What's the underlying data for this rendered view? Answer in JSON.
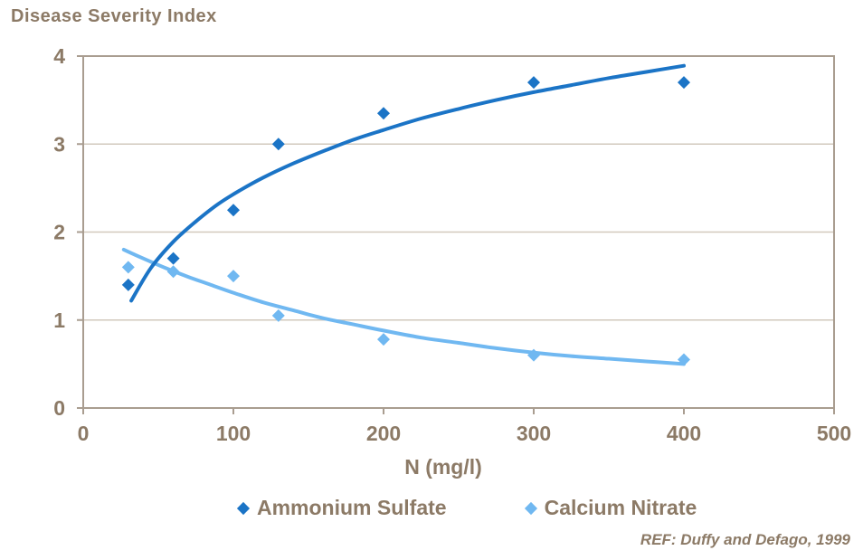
{
  "chart_data": {
    "type": "scatter",
    "title": "Disease Severity Index",
    "xlabel": "N (mg/l)",
    "ylabel": "Disease Severity Index",
    "xlim": [
      0,
      500
    ],
    "ylim": [
      0,
      4
    ],
    "xticks": [
      0,
      100,
      200,
      300,
      400,
      500
    ],
    "yticks": [
      0,
      1,
      2,
      3,
      4
    ],
    "grid": "horizontal-only",
    "legend_position": "bottom-center",
    "title_position": "top-left",
    "annotation": "REF: Duffy and Defago, 1999",
    "text_color": "#8c7a66",
    "axis_color": "#a99d90",
    "grid_color": "#d2c9bd",
    "background_color": "#ffffff",
    "series": [
      {
        "name": "Ammonium Sulfate",
        "color": "#1b74c6",
        "marker": "diamond",
        "points": [
          [
            30,
            1.4
          ],
          [
            60,
            1.7
          ],
          [
            100,
            2.25
          ],
          [
            130,
            3.0
          ],
          [
            200,
            3.35
          ],
          [
            300,
            3.7
          ],
          [
            400,
            3.7
          ]
        ],
        "trend_type": "logarithmic",
        "trend": [
          [
            32,
            1.22
          ],
          [
            45,
            1.59
          ],
          [
            60,
            1.89
          ],
          [
            75,
            2.12
          ],
          [
            90,
            2.32
          ],
          [
            105,
            2.48
          ],
          [
            120,
            2.62
          ],
          [
            140,
            2.78
          ],
          [
            160,
            2.92
          ],
          [
            180,
            3.05
          ],
          [
            200,
            3.16
          ],
          [
            225,
            3.29
          ],
          [
            250,
            3.4
          ],
          [
            275,
            3.5
          ],
          [
            300,
            3.59
          ],
          [
            325,
            3.67
          ],
          [
            350,
            3.75
          ],
          [
            375,
            3.82
          ],
          [
            400,
            3.89
          ]
        ]
      },
      {
        "name": "Calcium Nitrate",
        "color": "#70b8f1",
        "marker": "diamond",
        "points": [
          [
            30,
            1.6
          ],
          [
            60,
            1.55
          ],
          [
            100,
            1.5
          ],
          [
            130,
            1.05
          ],
          [
            200,
            0.78
          ],
          [
            300,
            0.6
          ],
          [
            400,
            0.55
          ]
        ],
        "trend_type": "exponential-decay",
        "trend": [
          [
            27,
            1.8
          ],
          [
            40,
            1.7
          ],
          [
            55,
            1.59
          ],
          [
            70,
            1.49
          ],
          [
            85,
            1.4
          ],
          [
            100,
            1.31
          ],
          [
            120,
            1.2
          ],
          [
            140,
            1.11
          ],
          [
            160,
            1.02
          ],
          [
            180,
            0.95
          ],
          [
            200,
            0.88
          ],
          [
            225,
            0.8
          ],
          [
            250,
            0.74
          ],
          [
            275,
            0.68
          ],
          [
            300,
            0.63
          ],
          [
            325,
            0.59
          ],
          [
            350,
            0.56
          ],
          [
            375,
            0.53
          ],
          [
            400,
            0.5
          ]
        ]
      }
    ]
  }
}
